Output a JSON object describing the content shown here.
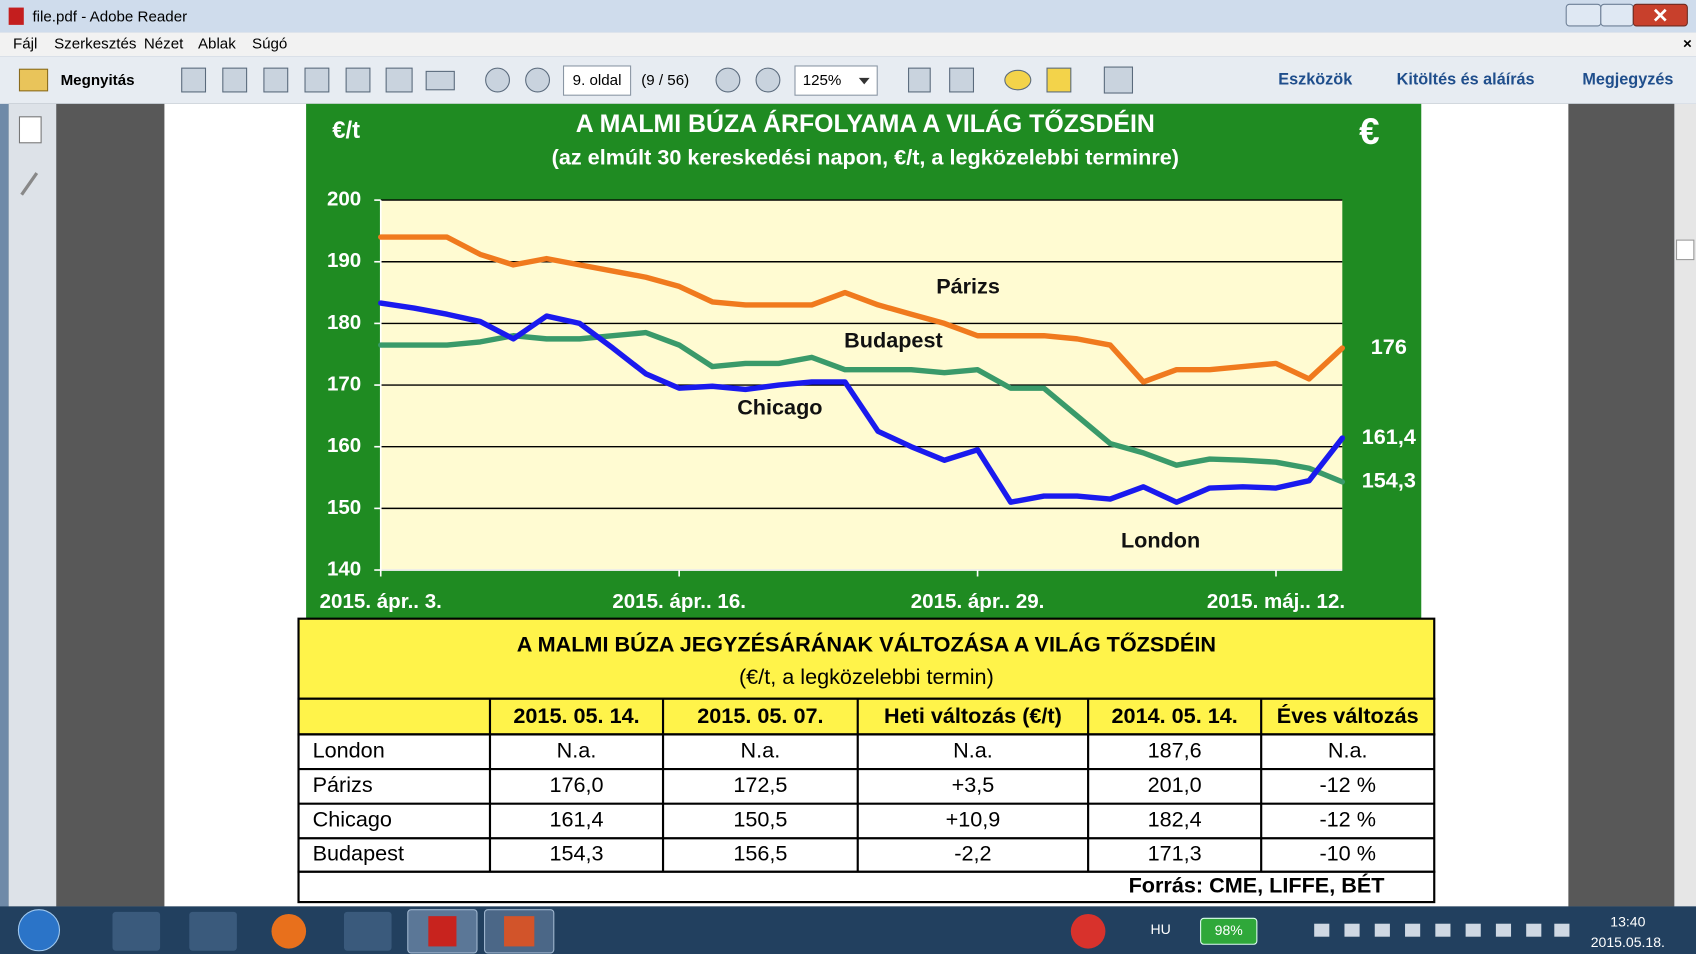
{
  "window": {
    "title": "file.pdf - Adobe Reader"
  },
  "menu": [
    "Fájl",
    "Szerkesztés",
    "Nézet",
    "Ablak",
    "Súgó"
  ],
  "toolbar": {
    "open": "Megnyitás",
    "page": "9. oldal",
    "page_count": "(9 / 56)",
    "zoom": "125%",
    "tools": "Eszközök",
    "fill_sign": "Kitöltés és aláírás",
    "comment": "Megjegyzés"
  },
  "chart_data": {
    "type": "line",
    "title": "A MALMI  BÚZA ÁRFOLYAMA A VILÁG TŐZSDÉIN",
    "subtitle": "(az elmúlt 30 kereskedési napon, €/t, a legközelebbi terminre)",
    "y_label": "€/t",
    "badge": "€",
    "categories": [
      "2015. ápr.. 3.",
      null,
      null,
      null,
      null,
      null,
      null,
      null,
      null,
      "2015. ápr.. 16.",
      null,
      null,
      null,
      null,
      null,
      null,
      null,
      null,
      "2015. ápr.. 29.",
      null,
      null,
      null,
      null,
      null,
      null,
      null,
      null,
      "2015. máj.. 12.",
      null,
      null
    ],
    "ylim": [
      140,
      200
    ],
    "yticks": [
      140,
      150,
      160,
      170,
      180,
      190,
      200
    ],
    "grid": true,
    "series": [
      {
        "name": "Párizs",
        "color": "#f07a1e",
        "values": [
          194,
          194,
          194,
          191.2,
          189.5,
          190.5,
          189.5,
          188.5,
          187.5,
          186,
          183.5,
          183,
          183,
          183,
          185,
          183,
          181.5,
          180,
          178,
          178,
          178,
          177.5,
          176.5,
          170.5,
          172.5,
          172.5,
          173,
          173.5,
          171,
          176
        ],
        "value_labels": [
          null,
          null,
          null,
          null,
          null,
          null,
          null,
          null,
          null,
          null,
          null,
          null,
          null,
          null,
          null,
          null,
          null,
          null,
          null,
          null,
          null,
          null,
          null,
          null,
          null,
          null,
          null,
          null,
          null,
          "176"
        ]
      },
      {
        "name": "Budapest",
        "color": "#3a9a6a",
        "values": [
          176.5,
          176.5,
          176.5,
          177,
          178,
          177.5,
          177.5,
          178,
          178.5,
          176.5,
          173,
          173.5,
          173.5,
          174.5,
          172.5,
          172.5,
          172.5,
          172,
          172.5,
          169.5,
          169.5,
          165,
          160.5,
          159,
          157,
          158,
          157.8,
          157.5,
          156.5,
          154.3
        ],
        "value_labels": [
          null,
          null,
          null,
          null,
          null,
          null,
          null,
          null,
          null,
          null,
          null,
          null,
          null,
          null,
          null,
          null,
          null,
          null,
          null,
          null,
          null,
          null,
          null,
          null,
          null,
          null,
          null,
          null,
          null,
          "154,3"
        ]
      },
      {
        "name": "Chicago",
        "color": "#1a1aee",
        "values": [
          183.3,
          182.5,
          181.5,
          180.3,
          177.5,
          181.2,
          180,
          176,
          171.8,
          169.5,
          169.8,
          169.3,
          170,
          170.5,
          170.5,
          162.5,
          160,
          157.8,
          159.5,
          151,
          152,
          152,
          151.5,
          153.5,
          151,
          153.3,
          153.5,
          153.3,
          154.5,
          161.4
        ],
        "value_labels": [
          null,
          null,
          null,
          null,
          null,
          null,
          null,
          null,
          null,
          null,
          null,
          null,
          null,
          null,
          null,
          null,
          null,
          null,
          null,
          null,
          null,
          null,
          null,
          null,
          null,
          null,
          null,
          null,
          null,
          "161,4"
        ]
      }
    ],
    "annotations": [
      "London"
    ]
  },
  "table": {
    "title": "A MALMI BÚZA JEGYZÉSÁRÁNAK VÁLTOZÁSA A VILÁG TŐZSDÉIN",
    "subtitle": "(€/t, a legközelebbi termin)",
    "header": [
      "2015. 05. 14.",
      "2015. 05. 07.",
      "Heti változás (€/t)",
      "2014. 05. 14.",
      "Éves változás"
    ],
    "rows": [
      [
        "London",
        "N.a.",
        "N.a.",
        "N.a.",
        "187,6",
        "N.a."
      ],
      [
        "Párizs",
        "176,0",
        "172,5",
        "+3,5",
        "201,0",
        "-12 %"
      ],
      [
        "Chicago",
        "161,4",
        "150,5",
        "+10,9",
        "182,4",
        "-12 %"
      ],
      [
        "Budapest",
        "154,3",
        "156,5",
        "-2,2",
        "171,3",
        "-10 %"
      ]
    ],
    "source": "Forrás: CME, LIFFE, BÉT"
  },
  "taskbar": {
    "language": "HU",
    "battery": "98%",
    "time": "13:40",
    "date": "2015.05.18."
  }
}
